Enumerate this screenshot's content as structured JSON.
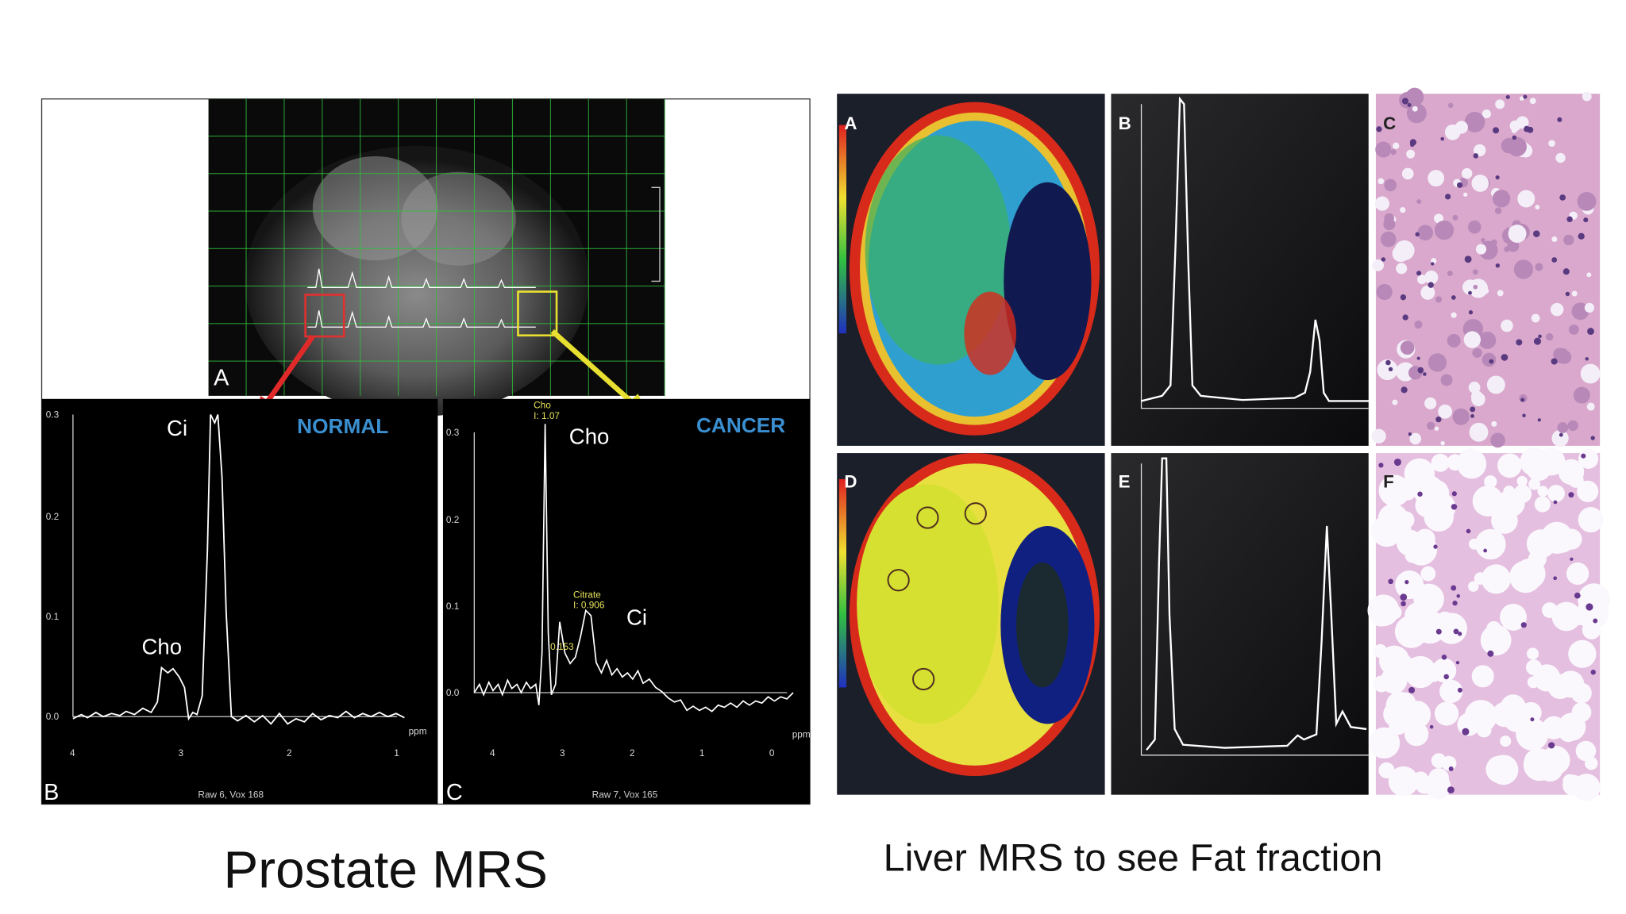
{
  "prostate": {
    "title": "Prostate MRS",
    "panel_a": "A",
    "panel_b": {
      "label": "B",
      "status": "NORMAL",
      "peak_ci": "Ci",
      "peak_cho": "Cho",
      "yticks": [
        "0.3",
        "0.2",
        "0.1",
        "0.0"
      ],
      "xticks": [
        "4",
        "3",
        "2",
        "1"
      ],
      "unit": "ppm",
      "footer": "Raw 6, Vox 168"
    },
    "panel_c": {
      "label": "C",
      "status": "CANCER",
      "peak_cho": "Cho",
      "peak_ci": "Ci",
      "cho_note": "Cho",
      "cho_value": "I: 1.07",
      "citrate_note": "Citrate",
      "citrate_value": "I: 0.906",
      "small_value": "0.153",
      "yticks": [
        "0.3",
        "0.2",
        "0.1",
        "0.0"
      ],
      "xticks": [
        "4",
        "3",
        "2",
        "1",
        "0"
      ],
      "unit": "ppm",
      "footer": "Raw 7, Vox 165"
    }
  },
  "liver": {
    "title": "Liver MRS to see Fat fraction",
    "panels": [
      "A",
      "B",
      "C",
      "D",
      "E",
      "F"
    ]
  }
}
